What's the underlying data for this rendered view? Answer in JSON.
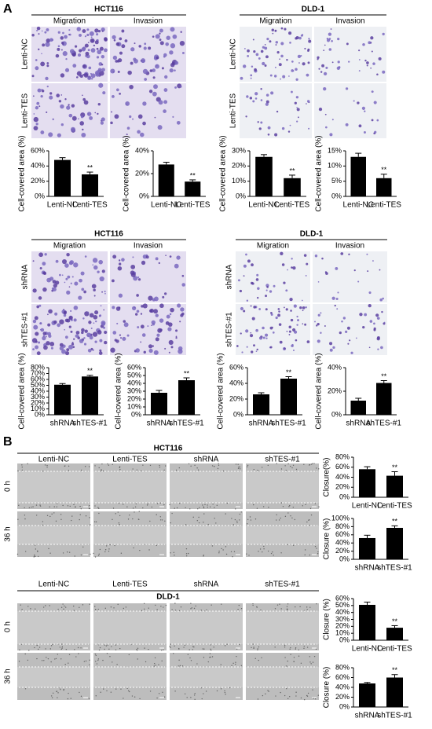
{
  "panel_labels": [
    "A",
    "B"
  ],
  "transwell": [
    {
      "cell_line": "HCT116",
      "columns": [
        "Migration",
        "Invasion"
      ],
      "rows": [
        "Lenti-NC",
        "Lenti-TES"
      ]
    },
    {
      "cell_line": "DLD-1",
      "columns": [
        "Migration",
        "Invasion"
      ],
      "rows": [
        "Lenti-NC",
        "Lenti-TES"
      ]
    },
    {
      "cell_line": "HCT116",
      "columns": [
        "Migration",
        "Invasion"
      ],
      "rows": [
        "shRNA",
        "shTES-#1"
      ]
    },
    {
      "cell_line": "DLD-1",
      "columns": [
        "Migration",
        "Invasion"
      ],
      "rows": [
        "shRNA",
        "shTES-#1"
      ]
    }
  ],
  "wound_healing": [
    {
      "cell_line": "HCT116",
      "columns": [
        "Lenti-NC",
        "Lenti-TES",
        "shRNA",
        "shTES-#1"
      ],
      "rows": [
        "0 h",
        "36 h"
      ]
    },
    {
      "cell_line": "DLD-1",
      "columns": [
        "Lenti-NC",
        "Lenti-TES",
        "shRNA",
        "shTES-#1"
      ],
      "rows": [
        "0 h",
        "36 h"
      ]
    }
  ],
  "chart_data": [
    {
      "type": "bar",
      "ylabel": "Cell-covered area (%)",
      "categories": [
        "Lenti-NC",
        "Lenti-TES"
      ],
      "values": [
        48,
        29
      ],
      "errors": [
        3,
        3
      ],
      "color": "#000000",
      "ylim": [
        0,
        60
      ],
      "yticks": [
        {
          "value": 0,
          "label": "0%"
        },
        {
          "value": 20,
          "label": "20%"
        },
        {
          "value": 40,
          "label": "40%"
        },
        {
          "value": 60,
          "label": "60%"
        }
      ],
      "annotations": [
        {
          "text": "**",
          "x": "Lenti-TES"
        }
      ]
    },
    {
      "type": "bar",
      "ylabel": "Cell-covered area (%)",
      "categories": [
        "Lenti-NC",
        "Lenti-TES"
      ],
      "values": [
        28,
        13
      ],
      "errors": [
        2,
        1.5
      ],
      "color": "#000000",
      "ylim": [
        0,
        40
      ],
      "yticks": [
        {
          "value": 0,
          "label": "0%"
        },
        {
          "value": 20,
          "label": "20%"
        },
        {
          "value": 40,
          "label": "40%"
        }
      ],
      "annotations": [
        {
          "text": "**",
          "x": "Lenti-TES"
        }
      ]
    },
    {
      "type": "bar",
      "ylabel": "Cell-covered area (%)",
      "categories": [
        "Lenti-NC",
        "Lenti-TES"
      ],
      "values": [
        26,
        12
      ],
      "errors": [
        1.5,
        2
      ],
      "color": "#000000",
      "ylim": [
        0,
        30
      ],
      "yticks": [
        {
          "value": 0,
          "label": "0%"
        },
        {
          "value": 10,
          "label": "10%"
        },
        {
          "value": 20,
          "label": "20%"
        },
        {
          "value": 30,
          "label": "30%"
        }
      ],
      "annotations": [
        {
          "text": "**",
          "x": "Lenti-TES"
        }
      ]
    },
    {
      "type": "bar",
      "ylabel": "Cell-covered area (%)",
      "categories": [
        "Lenti-NC",
        "Lenti-TES"
      ],
      "values": [
        13,
        6
      ],
      "errors": [
        1.2,
        1.3
      ],
      "color": "#000000",
      "ylim": [
        0,
        15
      ],
      "yticks": [
        {
          "value": 0,
          "label": "0%"
        },
        {
          "value": 5,
          "label": "5%"
        },
        {
          "value": 10,
          "label": "10%"
        },
        {
          "value": 15,
          "label": "15%"
        }
      ],
      "annotations": [
        {
          "text": "**",
          "x": "Lenti-TES"
        }
      ]
    },
    {
      "type": "bar",
      "ylabel": "Cell-covered area (%)",
      "categories": [
        "shRNA",
        "shTES-#1"
      ],
      "values": [
        51,
        65
      ],
      "errors": [
        2,
        2
      ],
      "color": "#000000",
      "ylim": [
        0,
        80
      ],
      "yticks": [
        {
          "value": 0,
          "label": "0%"
        },
        {
          "value": 10,
          "label": "10%"
        },
        {
          "value": 20,
          "label": "20%"
        },
        {
          "value": 30,
          "label": "30%"
        },
        {
          "value": 40,
          "label": "40%"
        },
        {
          "value": 50,
          "label": "50%"
        },
        {
          "value": 60,
          "label": "60%"
        },
        {
          "value": 70,
          "label": "70%"
        },
        {
          "value": 80,
          "label": "80%"
        }
      ],
      "annotations": [
        {
          "text": "**",
          "x": "shTES-#1"
        }
      ]
    },
    {
      "type": "bar",
      "ylabel": "Cell-covered area (%)",
      "categories": [
        "shRNA",
        "shTES-#1"
      ],
      "values": [
        28,
        44
      ],
      "errors": [
        3,
        3
      ],
      "color": "#000000",
      "ylim": [
        0,
        60
      ],
      "yticks": [
        {
          "value": 0,
          "label": "0%"
        },
        {
          "value": 10,
          "label": "10%"
        },
        {
          "value": 20,
          "label": "20%"
        },
        {
          "value": 30,
          "label": "30%"
        },
        {
          "value": 40,
          "label": "40%"
        },
        {
          "value": 50,
          "label": "50%"
        },
        {
          "value": 60,
          "label": "60%"
        }
      ],
      "annotations": [
        {
          "text": "**",
          "x": "shTES-#1"
        }
      ]
    },
    {
      "type": "bar",
      "ylabel": "Cell-covered area (%)",
      "categories": [
        "shRNA",
        "shTES-#1"
      ],
      "values": [
        26,
        46
      ],
      "errors": [
        2,
        2.5
      ],
      "color": "#000000",
      "ylim": [
        0,
        60
      ],
      "yticks": [
        {
          "value": 0,
          "label": "0%"
        },
        {
          "value": 20,
          "label": "20%"
        },
        {
          "value": 40,
          "label": "40%"
        },
        {
          "value": 60,
          "label": "60%"
        }
      ],
      "annotations": [
        {
          "text": "**",
          "x": "shTES-#1"
        }
      ]
    },
    {
      "type": "bar",
      "ylabel": "Cell-covered area (%)",
      "categories": [
        "shRNA",
        "shTES-#1"
      ],
      "values": [
        12,
        27
      ],
      "errors": [
        2,
        2
      ],
      "color": "#000000",
      "ylim": [
        0,
        40
      ],
      "yticks": [
        {
          "value": 0,
          "label": "0%"
        },
        {
          "value": 20,
          "label": "20%"
        },
        {
          "value": 40,
          "label": "40%"
        }
      ],
      "annotations": [
        {
          "text": "**",
          "x": "shTES-#1"
        }
      ]
    },
    {
      "type": "bar",
      "ylabel": "Closure(%)",
      "categories": [
        "Lenti-NC",
        "Lenti-TES"
      ],
      "values": [
        56,
        43
      ],
      "errors": [
        5,
        8
      ],
      "color": "#000000",
      "ylim": [
        0,
        80
      ],
      "yticks": [
        {
          "value": 0,
          "label": "0%"
        },
        {
          "value": 20,
          "label": "20%"
        },
        {
          "value": 40,
          "label": "40%"
        },
        {
          "value": 60,
          "label": "60%"
        },
        {
          "value": 80,
          "label": "80%"
        }
      ],
      "annotations": [
        {
          "text": "**",
          "x": "Lenti-TES"
        }
      ]
    },
    {
      "type": "bar",
      "ylabel": "Closure (%)",
      "categories": [
        "shRNA",
        "shTES-#1"
      ],
      "values": [
        52,
        77
      ],
      "errors": [
        7,
        5
      ],
      "color": "#000000",
      "ylim": [
        0,
        100
      ],
      "yticks": [
        {
          "value": 0,
          "label": "0%"
        },
        {
          "value": 20,
          "label": "20%"
        },
        {
          "value": 40,
          "label": "40%"
        },
        {
          "value": 60,
          "label": "60%"
        },
        {
          "value": 80,
          "label": "80%"
        },
        {
          "value": 100,
          "label": "100%"
        }
      ],
      "annotations": [
        {
          "text": "**",
          "x": "shTES-#1"
        }
      ]
    },
    {
      "type": "bar",
      "ylabel": "Closure (%)",
      "categories": [
        "Lenti-NC",
        "Lenti-TES"
      ],
      "values": [
        51,
        18
      ],
      "errors": [
        4,
        3
      ],
      "color": "#000000",
      "ylim": [
        0,
        60
      ],
      "yticks": [
        {
          "value": 0,
          "label": "0%"
        },
        {
          "value": 10,
          "label": "10%"
        },
        {
          "value": 20,
          "label": "20%"
        },
        {
          "value": 30,
          "label": "30%"
        },
        {
          "value": 40,
          "label": "40%"
        },
        {
          "value": 50,
          "label": "50%"
        },
        {
          "value": 60,
          "label": "60%"
        }
      ],
      "annotations": [
        {
          "text": "**",
          "x": "Lenti-TES"
        }
      ]
    },
    {
      "type": "bar",
      "ylabel": "Closure (%)",
      "categories": [
        "shRNA",
        "shTES-#1"
      ],
      "values": [
        48,
        60
      ],
      "errors": [
        2,
        6
      ],
      "color": "#000000",
      "ylim": [
        0,
        80
      ],
      "yticks": [
        {
          "value": 0,
          "label": "0%"
        },
        {
          "value": 20,
          "label": "20%"
        },
        {
          "value": 40,
          "label": "40%"
        },
        {
          "value": 60,
          "label": "60%"
        },
        {
          "value": 80,
          "label": "80%"
        }
      ],
      "annotations": [
        {
          "text": "**",
          "x": "shTES-#1"
        }
      ]
    }
  ]
}
